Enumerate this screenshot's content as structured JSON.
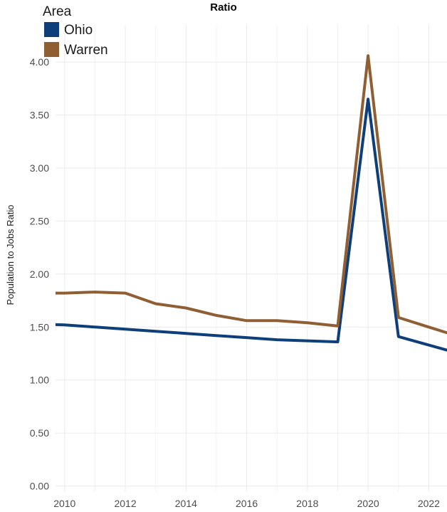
{
  "chart_data": {
    "type": "line",
    "title": "Ratio",
    "xlabel": "",
    "ylabel": "Population to Jobs Ratio",
    "xlim": [
      2009.7,
      2022.6
    ],
    "ylim": [
      -0.05,
      4.35
    ],
    "xticks": [
      2010,
      2012,
      2014,
      2016,
      2018,
      2020,
      2022
    ],
    "yticks": [
      0,
      0.5,
      1,
      1.5,
      2,
      2.5,
      3,
      3.5,
      4
    ],
    "ytick_labels": [
      "0.00",
      "0.50",
      "1.00",
      "1.50",
      "2.00",
      "2.50",
      "3.00",
      "3.50",
      "4.00"
    ],
    "grid": true,
    "legend": {
      "title": "Area",
      "position": "top-left"
    },
    "x": [
      2009,
      2010,
      2011,
      2012,
      2013,
      2014,
      2015,
      2016,
      2017,
      2018,
      2019,
      2020,
      2021,
      2022,
      2023
    ],
    "series": [
      {
        "name": "Ohio",
        "color": "#0e3f7a",
        "values": [
          1.53,
          1.52,
          1.5,
          1.48,
          1.46,
          1.44,
          1.42,
          1.4,
          1.38,
          1.37,
          1.36,
          3.65,
          1.41,
          1.33,
          1.25
        ]
      },
      {
        "name": "Warren",
        "color": "#8f5f33",
        "values": [
          1.82,
          1.82,
          1.83,
          1.82,
          1.72,
          1.68,
          1.61,
          1.56,
          1.56,
          1.54,
          1.51,
          4.06,
          1.59,
          1.5,
          1.41
        ]
      }
    ]
  }
}
